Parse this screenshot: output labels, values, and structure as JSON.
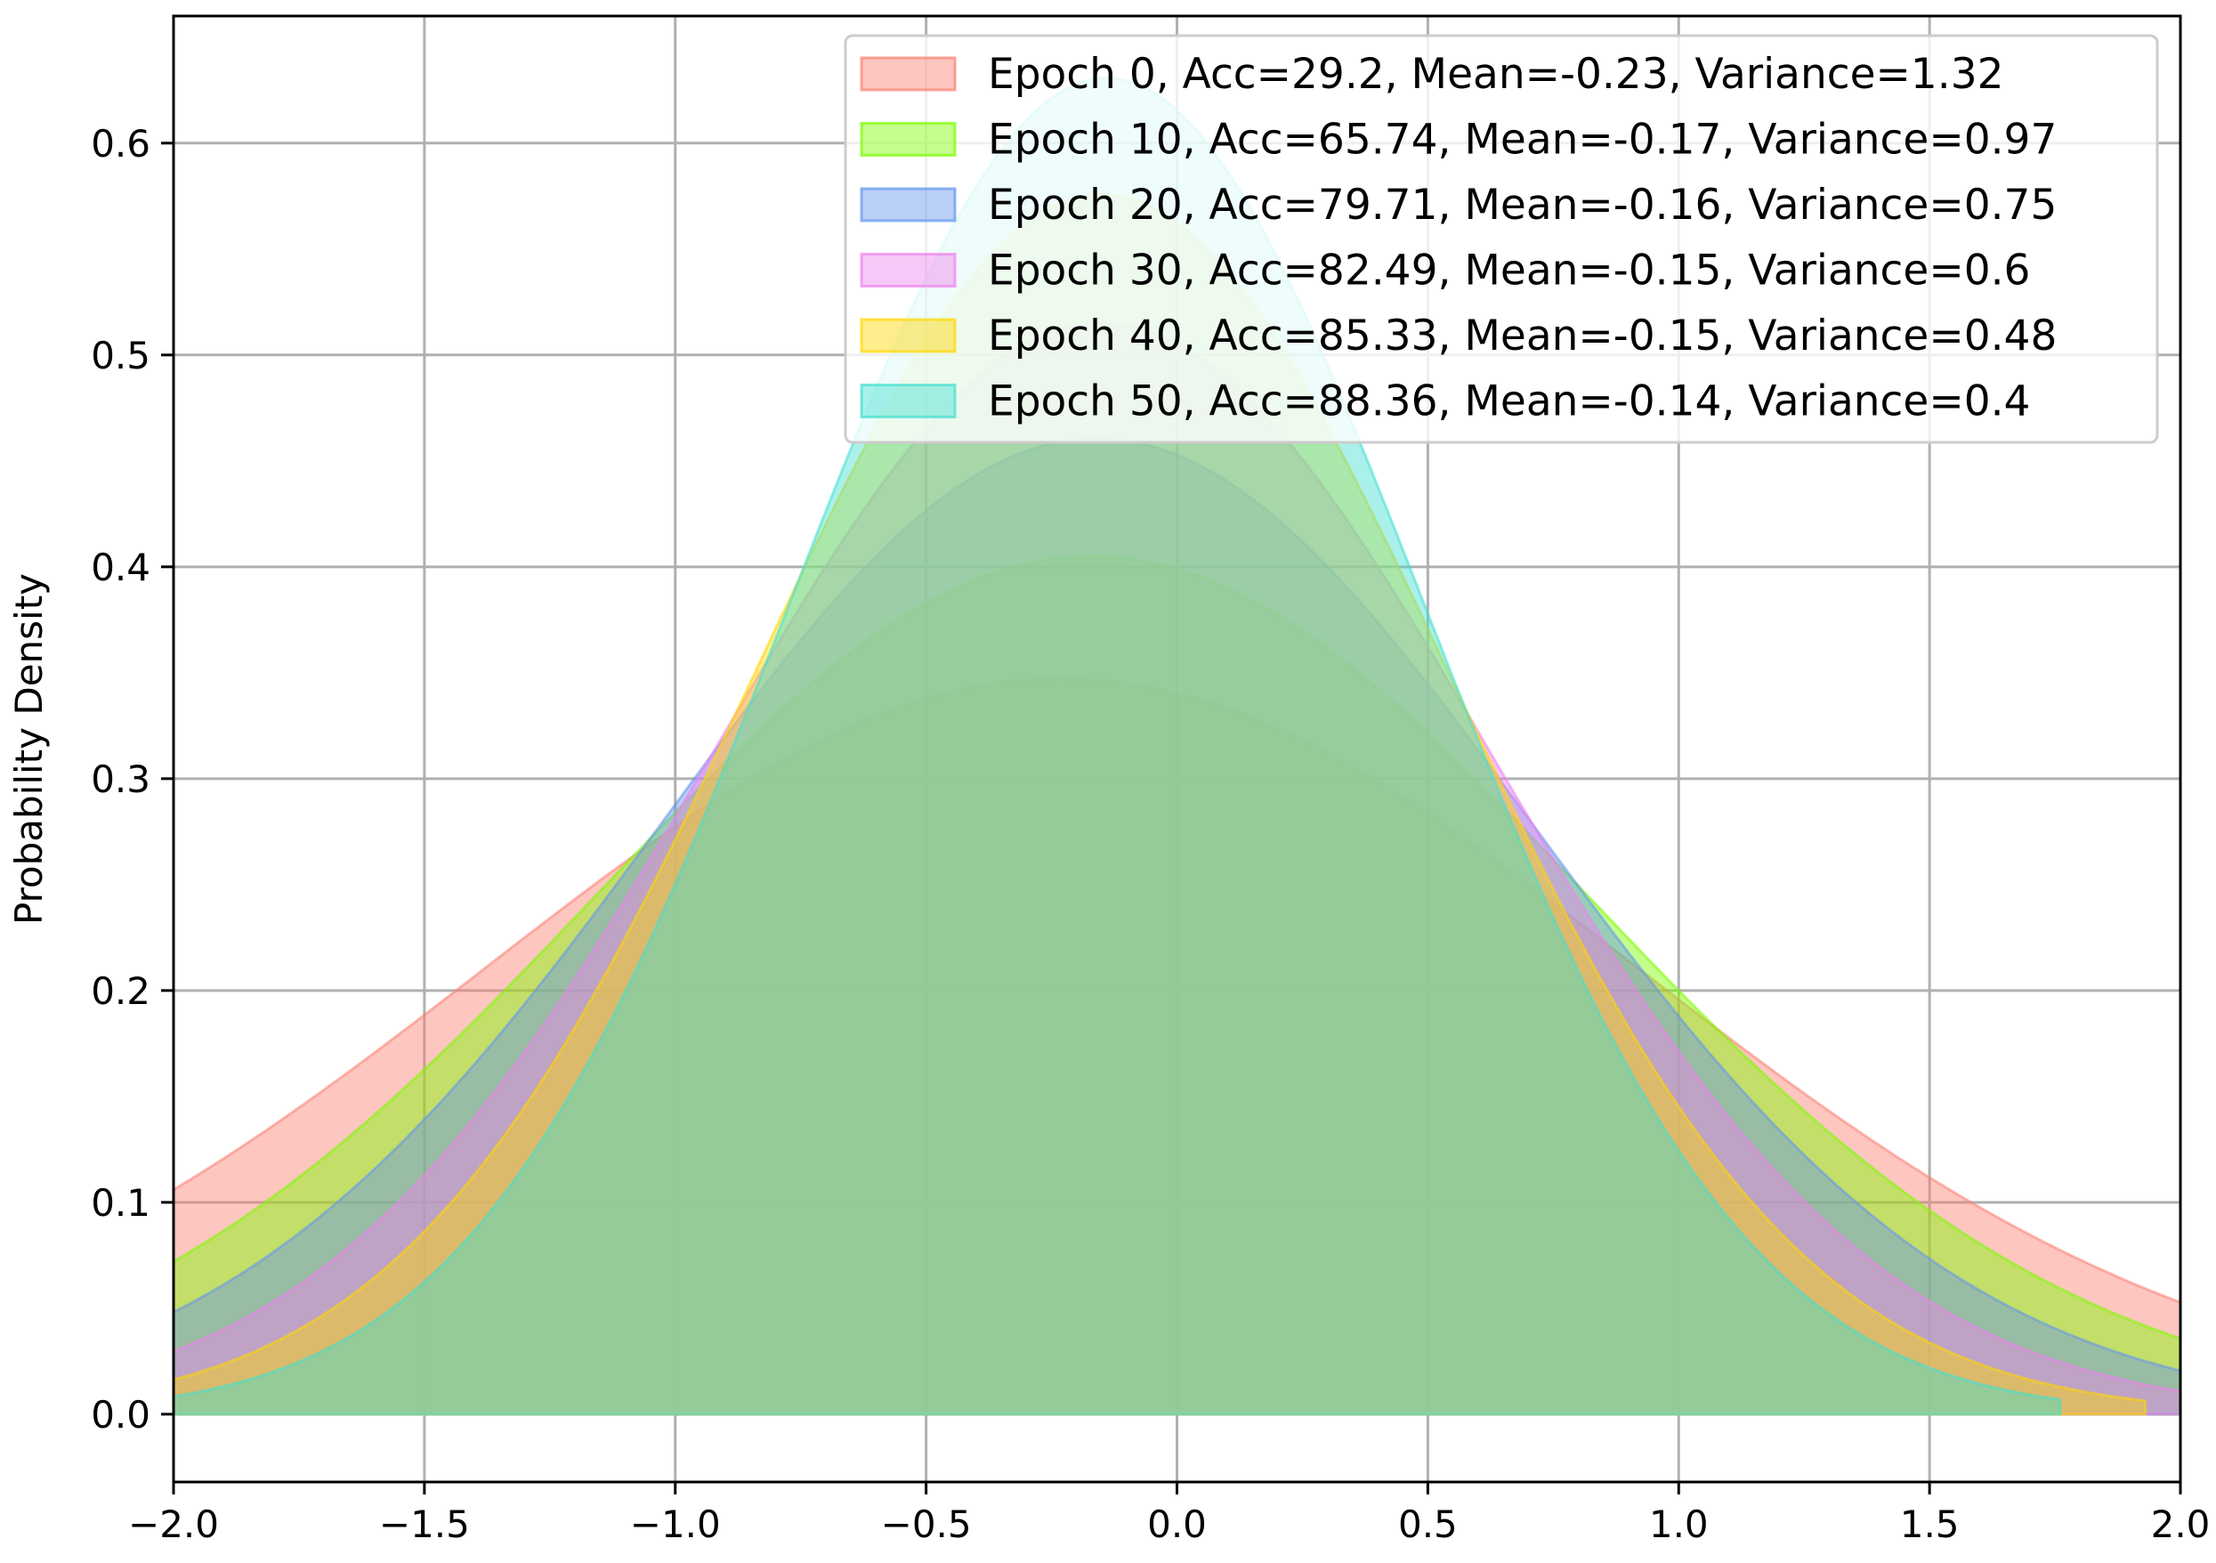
{
  "chart_data": {
    "type": "area",
    "title": "",
    "xlabel": "",
    "ylabel": "Probability Density",
    "xlim": [
      -2.0,
      2.0
    ],
    "ylim": [
      -0.032,
      0.66
    ],
    "xticks": [
      -2.0,
      -1.5,
      -1.0,
      -0.5,
      0.0,
      0.5,
      1.0,
      1.5,
      2.0
    ],
    "xtick_labels": [
      "−2.0",
      "−1.5",
      "−1.0",
      "−0.5",
      "0.0",
      "0.5",
      "1.0",
      "1.5",
      "2.0"
    ],
    "yticks": [
      0.0,
      0.1,
      0.2,
      0.3,
      0.4,
      0.5,
      0.6
    ],
    "ytick_labels": [
      "0.0",
      "0.1",
      "0.2",
      "0.3",
      "0.4",
      "0.5",
      "0.6"
    ],
    "grid": true,
    "legend_position": "top-right",
    "series": [
      {
        "name": "Epoch 0, Acc=29.2, Mean=-0.23, Variance=1.32",
        "mean": -0.23,
        "variance": 1.32,
        "color": "#FA8072",
        "x_max": 2.0
      },
      {
        "name": "Epoch 10, Acc=65.74, Mean=-0.17, Variance=0.97",
        "mean": -0.17,
        "variance": 0.97,
        "color": "#7CFC00",
        "x_max": 2.0
      },
      {
        "name": "Epoch 20, Acc=79.71, Mean=-0.16, Variance=0.75",
        "mean": -0.16,
        "variance": 0.75,
        "color": "#6495ED",
        "x_max": 2.0
      },
      {
        "name": "Epoch 30, Acc=82.49, Mean=-0.15, Variance=0.6",
        "mean": -0.15,
        "variance": 0.6,
        "color": "#EE82EE",
        "x_max": 2.0
      },
      {
        "name": "Epoch 40, Acc=85.33, Mean=-0.15, Variance=0.48",
        "mean": -0.15,
        "variance": 0.48,
        "color": "#FFD700",
        "x_max": 1.93
      },
      {
        "name": "Epoch 50, Acc=88.36, Mean=-0.14, Variance=0.4",
        "mean": -0.14,
        "variance": 0.4,
        "color": "#40E0D0",
        "x_max": 1.76
      }
    ],
    "fill_alpha": 0.45
  }
}
